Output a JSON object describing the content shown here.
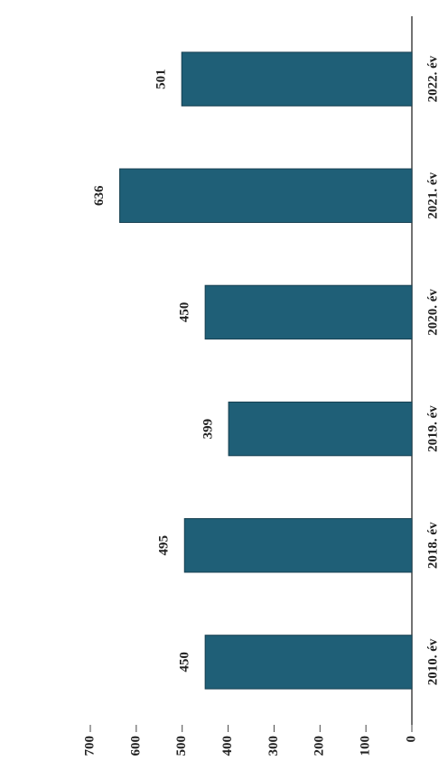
{
  "chart_data": {
    "type": "bar",
    "categories": [
      "2010. év",
      "2018. év",
      "2019. év",
      "2020. év",
      "2021. év",
      "2022. év"
    ],
    "values": [
      450,
      495,
      399,
      450,
      636,
      501
    ],
    "color": "#1f5f77",
    "ylim": [
      0,
      700
    ],
    "yticks": [
      0,
      100,
      200,
      300,
      400,
      500,
      600,
      700
    ]
  }
}
